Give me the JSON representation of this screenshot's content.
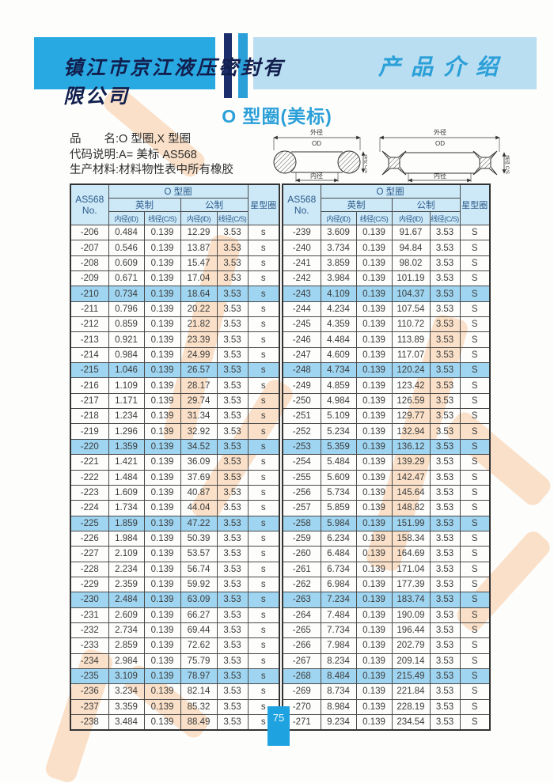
{
  "header": {
    "company": "镇江市京江液压密封有限公司",
    "section": "产品介绍"
  },
  "title": "O 型圈(美标)",
  "info": {
    "line1": "品　　名:O 型圈,X 型圈",
    "line2": "代码说明:A= 美标 AS568",
    "line3": "生产材料:材料物性表中所有橡胶"
  },
  "diagram_labels": {
    "od_cn": "外径",
    "od_en": "OD",
    "id_cn": "内径",
    "id_en": "ID",
    "cs_cn": "线径",
    "cs_en": "C/S"
  },
  "tables": {
    "header": {
      "col_no_line1": "AS568",
      "col_no_line2": "No.",
      "group_oring": "O 型圈",
      "group_inch": "英制",
      "group_metric": "公制",
      "col_id": "内径(ID)",
      "col_cs": "线径(C/S)",
      "col_star": "星型圈"
    },
    "highlight_every": 5,
    "left_rows": [
      [
        "-206",
        "0.484",
        "0.139",
        "12.29",
        "3.53",
        "s"
      ],
      [
        "-207",
        "0.546",
        "0.139",
        "13.87",
        "3.53",
        "s"
      ],
      [
        "-208",
        "0.609",
        "0.139",
        "15.47",
        "3.53",
        "s"
      ],
      [
        "-209",
        "0.671",
        "0.139",
        "17.04",
        "3.53",
        "s"
      ],
      [
        "-210",
        "0.734",
        "0.139",
        "18.64",
        "3.53",
        "s"
      ],
      [
        "-211",
        "0.796",
        "0.139",
        "20.22",
        "3.53",
        "s"
      ],
      [
        "-212",
        "0.859",
        "0.139",
        "21.82",
        "3.53",
        "s"
      ],
      [
        "-213",
        "0.921",
        "0.139",
        "23.39",
        "3.53",
        "s"
      ],
      [
        "-214",
        "0.984",
        "0.139",
        "24.99",
        "3.53",
        "s"
      ],
      [
        "-215",
        "1.046",
        "0.139",
        "26.57",
        "3.53",
        "s"
      ],
      [
        "-216",
        "1.109",
        "0.139",
        "28.17",
        "3.53",
        "s"
      ],
      [
        "-217",
        "1.171",
        "0.139",
        "29.74",
        "3.53",
        "s"
      ],
      [
        "-218",
        "1.234",
        "0.139",
        "31.34",
        "3.53",
        "s"
      ],
      [
        "-219",
        "1.296",
        "0.139",
        "32.92",
        "3.53",
        "s"
      ],
      [
        "-220",
        "1.359",
        "0.139",
        "34.52",
        "3.53",
        "s"
      ],
      [
        "-221",
        "1.421",
        "0.139",
        "36.09",
        "3.53",
        "s"
      ],
      [
        "-222",
        "1.484",
        "0.139",
        "37.69",
        "3.53",
        "s"
      ],
      [
        "-223",
        "1.609",
        "0.139",
        "40.87",
        "3.53",
        "s"
      ],
      [
        "-224",
        "1.734",
        "0.139",
        "44.04",
        "3.53",
        "s"
      ],
      [
        "-225",
        "1.859",
        "0.139",
        "47.22",
        "3.53",
        "s"
      ],
      [
        "-226",
        "1.984",
        "0.139",
        "50.39",
        "3.53",
        "s"
      ],
      [
        "-227",
        "2.109",
        "0.139",
        "53.57",
        "3.53",
        "s"
      ],
      [
        "-228",
        "2.234",
        "0.139",
        "56.74",
        "3.53",
        "s"
      ],
      [
        "-229",
        "2.359",
        "0.139",
        "59.92",
        "3.53",
        "s"
      ],
      [
        "-230",
        "2.484",
        "0.139",
        "63.09",
        "3.53",
        "s"
      ],
      [
        "-231",
        "2.609",
        "0.139",
        "66.27",
        "3.53",
        "s"
      ],
      [
        "-232",
        "2.734",
        "0.139",
        "69.44",
        "3.53",
        "s"
      ],
      [
        "-233",
        "2.859",
        "0.139",
        "72.62",
        "3.53",
        "s"
      ],
      [
        "-234",
        "2.984",
        "0.139",
        "75.79",
        "3.53",
        "s"
      ],
      [
        "-235",
        "3.109",
        "0.139",
        "78.97",
        "3.53",
        "s"
      ],
      [
        "-236",
        "3.234",
        "0.139",
        "82.14",
        "3.53",
        "s"
      ],
      [
        "-237",
        "3.359",
        "0.139",
        "85.32",
        "3.53",
        "s"
      ],
      [
        "-238",
        "3.484",
        "0.139",
        "88.49",
        "3.53",
        "s"
      ]
    ],
    "right_rows": [
      [
        "-239",
        "3.609",
        "0.139",
        "91.67",
        "3.53",
        "S"
      ],
      [
        "-240",
        "3.734",
        "0.139",
        "94.84",
        "3.53",
        "S"
      ],
      [
        "-241",
        "3.859",
        "0.139",
        "98.02",
        "3.53",
        "S"
      ],
      [
        "-242",
        "3.984",
        "0.139",
        "101.19",
        "3.53",
        "S"
      ],
      [
        "-243",
        "4.109",
        "0.139",
        "104.37",
        "3.53",
        "S"
      ],
      [
        "-244",
        "4.234",
        "0.139",
        "107.54",
        "3.53",
        "S"
      ],
      [
        "-245",
        "4.359",
        "0.139",
        "110.72",
        "3.53",
        "S"
      ],
      [
        "-246",
        "4.484",
        "0.139",
        "113.89",
        "3.53",
        "S"
      ],
      [
        "-247",
        "4.609",
        "0.139",
        "117.07",
        "3.53",
        "S"
      ],
      [
        "-248",
        "4.734",
        "0.139",
        "120.24",
        "3.53",
        "S"
      ],
      [
        "-249",
        "4.859",
        "0.139",
        "123.42",
        "3.53",
        "S"
      ],
      [
        "-250",
        "4.984",
        "0.139",
        "126.59",
        "3.53",
        "S"
      ],
      [
        "-251",
        "5.109",
        "0.139",
        "129.77",
        "3.53",
        "S"
      ],
      [
        "-252",
        "5.234",
        "0.139",
        "132.94",
        "3.53",
        "S"
      ],
      [
        "-253",
        "5.359",
        "0.139",
        "136.12",
        "3.53",
        "S"
      ],
      [
        "-254",
        "5.484",
        "0.139",
        "139.29",
        "3.53",
        "S"
      ],
      [
        "-255",
        "5.609",
        "0.139",
        "142.47",
        "3.53",
        "S"
      ],
      [
        "-256",
        "5.734",
        "0.139",
        "145.64",
        "3.53",
        "S"
      ],
      [
        "-257",
        "5.859",
        "0.139",
        "148.82",
        "3.53",
        "S"
      ],
      [
        "-258",
        "5.984",
        "0.139",
        "151.99",
        "3.53",
        "S"
      ],
      [
        "-259",
        "6.234",
        "0.139",
        "158.34",
        "3.53",
        "S"
      ],
      [
        "-260",
        "6.484",
        "0.139",
        "164.69",
        "3.53",
        "S"
      ],
      [
        "-261",
        "6.734",
        "0.139",
        "171.04",
        "3.53",
        "S"
      ],
      [
        "-262",
        "6.984",
        "0.139",
        "177.39",
        "3.53",
        "S"
      ],
      [
        "-263",
        "7.234",
        "0.139",
        "183.74",
        "3.53",
        "S"
      ],
      [
        "-264",
        "7.484",
        "0.139",
        "190.09",
        "3.53",
        "S"
      ],
      [
        "-265",
        "7.734",
        "0.139",
        "196.44",
        "3.53",
        "S"
      ],
      [
        "-266",
        "7.984",
        "0.139",
        "202.79",
        "3.53",
        "S"
      ],
      [
        "-267",
        "8.234",
        "0.139",
        "209.14",
        "3.53",
        "S"
      ],
      [
        "-268",
        "8.484",
        "0.139",
        "215.49",
        "3.53",
        "S"
      ],
      [
        "-269",
        "8.734",
        "0.139",
        "221.84",
        "3.53",
        "S"
      ],
      [
        "-270",
        "8.984",
        "0.139",
        "228.19",
        "3.53",
        "S"
      ],
      [
        "-271",
        "9.234",
        "0.139",
        "234.54",
        "3.53",
        "S"
      ]
    ]
  },
  "page_number": "75",
  "colors": {
    "header_box": "#29a9e2",
    "header_bar_dark": "#1b2d6b",
    "header_box_light": "#b9ddf1",
    "accent_blue": "#2a9fd8",
    "table_header_bg": "#cde9f7",
    "row_highlight": "#9fd5f1",
    "watermark_orange": "#f6bd8a",
    "page_num_bg": "#1ea3e0"
  }
}
